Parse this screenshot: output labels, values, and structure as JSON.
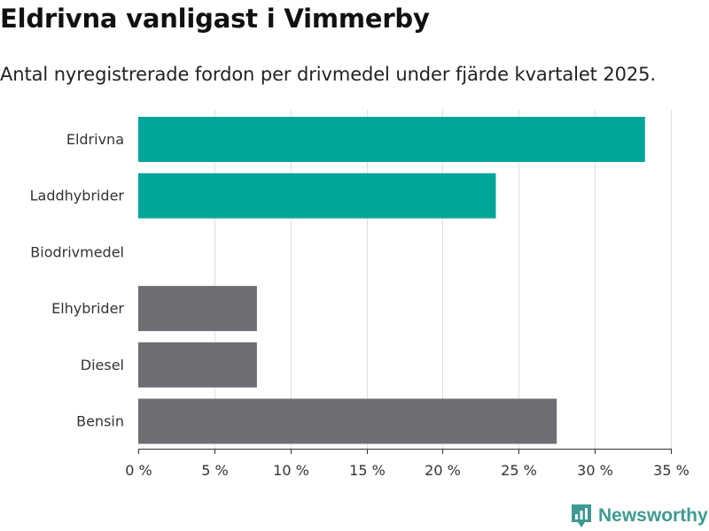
{
  "title": "Eldrivna vanligast i Vimmerby",
  "subtitle": "Antal nyregistrerade fordon per drivmedel under fjärde kvartalet 2025.",
  "brand": {
    "name": "Newsworthy",
    "icon": "newsworthy-logo-icon"
  },
  "colors": {
    "highlight": "#00a59a",
    "neutral": "#6e6d73",
    "brand": "#3e9a92"
  },
  "chart_data": {
    "type": "bar",
    "orientation": "horizontal",
    "categories": [
      "Eldrivna",
      "Laddhybrider",
      "Biodrivmedel",
      "Elhybrider",
      "Diesel",
      "Bensin"
    ],
    "values": [
      33.3,
      23.5,
      0,
      7.8,
      7.8,
      27.5
    ],
    "highlight": [
      true,
      true,
      false,
      false,
      false,
      false
    ],
    "xlim": [
      0,
      35
    ],
    "xticks": [
      0,
      5,
      10,
      15,
      20,
      25,
      30,
      35
    ],
    "xtick_labels": [
      "0 %",
      "5 %",
      "10 %",
      "15 %",
      "20 %",
      "25 %",
      "30 %",
      "35 %"
    ],
    "xlabel": "",
    "ylabel": "",
    "grid": true
  }
}
